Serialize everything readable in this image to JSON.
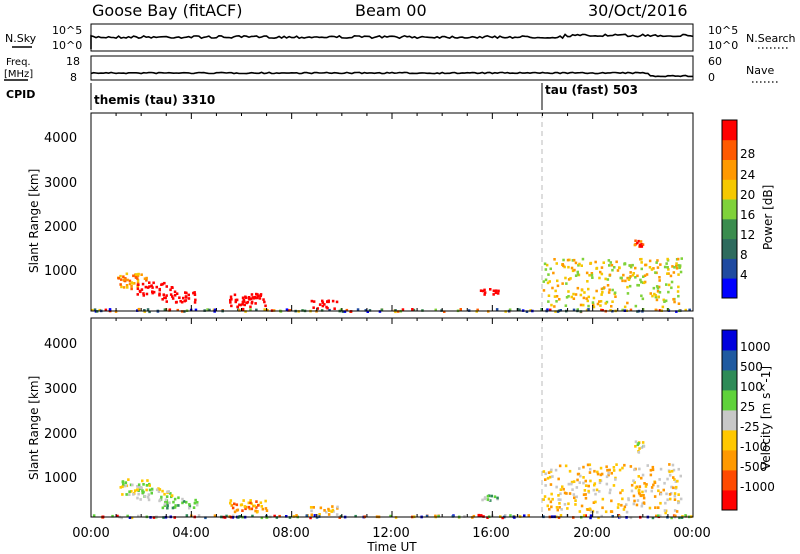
{
  "header": {
    "station": "Goose Bay (fitACF)",
    "beam": "Beam 00",
    "date": "30/Oct/2016"
  },
  "strip_labels": {
    "nsky": "N.Sky",
    "nsearch": "N.Search",
    "freq": "Freq.",
    "freq_unit": "[MHz]",
    "nave": "Nave",
    "cpid": "CPID"
  },
  "strip_ticks": {
    "nsky_top": "10^5",
    "nsky_bottom": "10^0",
    "nsearch_top": "10^5",
    "nsearch_bottom": "10^0",
    "freq_top": "18",
    "freq_bottom": "8",
    "nave_top": "60",
    "nave_bottom": "0"
  },
  "cpid": [
    {
      "label": "themis (tau) 3310",
      "start_hour": 0
    },
    {
      "label": "tau (fast) 503",
      "start_hour": 18
    }
  ],
  "colors": {
    "power": [
      "#0000ff",
      "#1f4aa0",
      "#2e6b5e",
      "#3a8c4e",
      "#7fd23a",
      "#f5c800",
      "#ff9900",
      "#ff5a00",
      "#ff0000"
    ],
    "velocity": [
      "#ff0000",
      "#ff4a00",
      "#ff9900",
      "#ffc800",
      "#c8c8c8",
      "#5fd23a",
      "#2e8b57",
      "#1f5aa0",
      "#0000dd"
    ],
    "dashed_line": "#bbbbbb"
  },
  "chart_data": [
    {
      "type": "heatmap",
      "name": "power",
      "ylabel": "Slant Range [km]",
      "yticks": [
        "1000",
        "2000",
        "3000",
        "4000"
      ],
      "ylim": [
        180,
        4650
      ],
      "xlim": [
        0,
        24
      ],
      "colorbar_label": "Power [dB]",
      "colorbar_ticks": [
        "4",
        "8",
        "12",
        "16",
        "20",
        "24",
        "28"
      ],
      "colorbar_range": [
        0,
        30
      ],
      "blobs": [
        {
          "h0": 1.0,
          "h1": 2.3,
          "r0": 700,
          "r1": 1050,
          "v": 6
        },
        {
          "h0": 1.8,
          "h1": 3.2,
          "r0": 550,
          "r1": 850,
          "v": 12
        },
        {
          "h0": 2.8,
          "h1": 4.2,
          "r0": 400,
          "r1": 650,
          "v": 10
        },
        {
          "h0": 5.5,
          "h1": 7.0,
          "r0": 300,
          "r1": 600,
          "v": 18
        },
        {
          "h0": 6.0,
          "h1": 6.6,
          "r0": 380,
          "r1": 520,
          "v": 24
        },
        {
          "h0": 8.7,
          "h1": 9.8,
          "r0": 250,
          "r1": 450,
          "v": 12
        },
        {
          "h0": 15.5,
          "h1": 16.3,
          "r0": 580,
          "r1": 700,
          "v": 10
        },
        {
          "h0": 18.0,
          "h1": 23.5,
          "r0": 300,
          "r1": 1400,
          "v": 5
        },
        {
          "h0": 21.6,
          "h1": 22.0,
          "r0": 1650,
          "r1": 1800,
          "v": 7
        }
      ]
    },
    {
      "type": "heatmap",
      "name": "velocity",
      "ylabel": "Slant Range [km]",
      "yticks": [
        "1000",
        "2000",
        "3000",
        "4000"
      ],
      "ylim": [
        180,
        4650
      ],
      "xlim": [
        0,
        24
      ],
      "xticks": [
        "00:00",
        "04:00",
        "08:00",
        "12:00",
        "16:00",
        "20:00",
        "00:00"
      ],
      "xlabel": "Time UT",
      "colorbar_label": "Velocity [m s^-1]",
      "colorbar_ticks": [
        "-1000",
        "-500",
        "-100",
        "-25",
        "25",
        "100",
        "500",
        "1000"
      ],
      "blobs": [
        {
          "h0": 1.0,
          "h1": 2.3,
          "r0": 700,
          "r1": 1050,
          "v": 4
        },
        {
          "h0": 1.8,
          "h1": 3.2,
          "r0": 550,
          "r1": 850,
          "v": 4
        },
        {
          "h0": 2.8,
          "h1": 4.2,
          "r0": 400,
          "r1": 650,
          "v": 5
        },
        {
          "h0": 5.5,
          "h1": 7.0,
          "r0": 300,
          "r1": 600,
          "v": 2
        },
        {
          "h0": 8.7,
          "h1": 9.8,
          "r0": 250,
          "r1": 450,
          "v": 3
        },
        {
          "h0": 15.5,
          "h1": 16.3,
          "r0": 580,
          "r1": 700,
          "v": 5
        },
        {
          "h0": 18.0,
          "h1": 23.5,
          "r0": 300,
          "r1": 1400,
          "v": 3
        },
        {
          "h0": 21.6,
          "h1": 22.0,
          "r0": 1650,
          "r1": 1900,
          "v": 4
        }
      ]
    }
  ]
}
